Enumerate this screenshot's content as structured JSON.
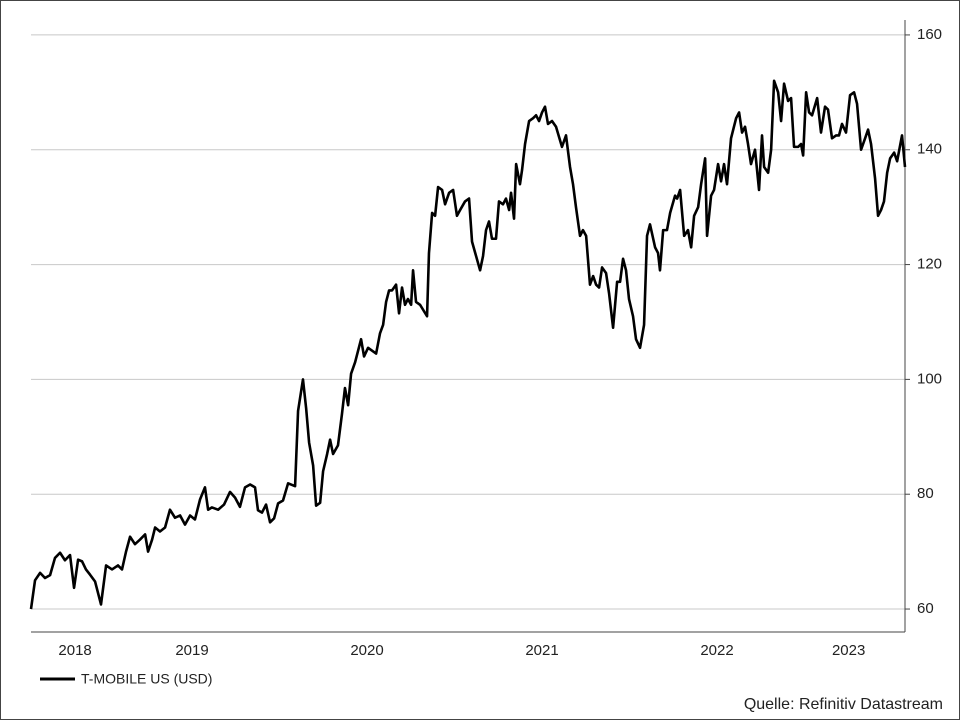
{
  "chart_data": {
    "type": "line",
    "series": [
      {
        "name": "T-MOBILE US (USD)",
        "color": "#000000",
        "x": [
          2018.577,
          2018.6,
          2018.629,
          2018.657,
          2018.686,
          2018.714,
          2018.743,
          2018.771,
          2018.8,
          2018.823,
          2018.846,
          2018.869,
          2018.891,
          2018.914,
          2018.943,
          2018.977,
          2019.006,
          2019.04,
          2019.074,
          2019.097,
          2019.12,
          2019.143,
          2019.171,
          2019.2,
          2019.229,
          2019.246,
          2019.269,
          2019.286,
          2019.314,
          2019.343,
          2019.371,
          2019.4,
          2019.429,
          2019.457,
          2019.486,
          2019.514,
          2019.543,
          2019.571,
          2019.589,
          2019.611,
          2019.646,
          2019.68,
          2019.714,
          2019.743,
          2019.771,
          2019.8,
          2019.829,
          2019.857,
          2019.874,
          2019.897,
          2019.92,
          2019.943,
          2019.966,
          2019.989,
          2020.017,
          2020.046,
          2020.086,
          2020.103,
          2020.131,
          2020.149,
          2020.166,
          2020.189,
          2020.206,
          2020.229,
          2020.246,
          2020.269,
          2020.286,
          2020.303,
          2020.331,
          2020.354,
          2020.371,
          2020.389,
          2020.406,
          2020.429,
          2020.463,
          2020.48,
          2020.503,
          2020.549,
          2020.571,
          2020.589,
          2020.606,
          2020.623,
          2020.64,
          2020.663,
          2020.68,
          2020.697,
          2020.714,
          2020.731,
          2020.749,
          2020.76,
          2020.777,
          2020.8,
          2020.84,
          2020.851,
          2020.869,
          2020.886,
          2020.903,
          2020.926,
          2020.943,
          2020.966,
          2020.989,
          2021.011,
          2021.029,
          2021.057,
          2021.08,
          2021.097,
          2021.12,
          2021.143,
          2021.16,
          2021.177,
          2021.194,
          2021.211,
          2021.234,
          2021.251,
          2021.274,
          2021.291,
          2021.309,
          2021.32,
          2021.337,
          2021.349,
          2021.371,
          2021.383,
          2021.4,
          2021.423,
          2021.446,
          2021.463,
          2021.48,
          2021.497,
          2021.514,
          2021.531,
          2021.554,
          2021.577,
          2021.611,
          2021.634,
          2021.657,
          2021.674,
          2021.691,
          2021.714,
          2021.731,
          2021.749,
          2021.771,
          2021.789,
          2021.806,
          2021.823,
          2021.84,
          2021.863,
          2021.88,
          2021.903,
          2021.926,
          2021.943,
          2021.96,
          2021.977,
          2021.994,
          2022.017,
          2022.034,
          2022.057,
          2022.08,
          2022.097,
          2022.114,
          2022.143,
          2022.16,
          2022.171,
          2022.189,
          2022.211,
          2022.229,
          2022.257,
          2022.269,
          2022.286,
          2022.309,
          2022.331,
          2022.349,
          2022.366,
          2022.389,
          2022.406,
          2022.429,
          2022.44,
          2022.463,
          2022.48,
          2022.503,
          2022.52,
          2022.537,
          2022.554,
          2022.577,
          2022.606,
          2022.623,
          2022.64,
          2022.657,
          2022.674,
          2022.691,
          2022.714,
          2022.737,
          2022.754,
          2022.766,
          2022.789,
          2022.806,
          2022.823,
          2022.846,
          2022.863,
          2022.88,
          2022.903,
          2022.92,
          2022.937,
          2022.96,
          2022.977,
          2022.989,
          2023.006,
          2023.023,
          2023.04,
          2023.069,
          2023.091,
          2023.114,
          2023.131,
          2023.154,
          2023.177,
          2023.194,
          2023.211,
          2023.234,
          2023.257,
          2023.28,
          2023.297,
          2023.32,
          2023.343,
          2023.36,
          2023.377,
          2023.4,
          2023.417,
          2023.434,
          2023.451,
          2023.469,
          2023.486,
          2023.509,
          2023.526,
          2023.554,
          2023.571
        ],
        "values": [
          60,
          65,
          66.3,
          65.4,
          65.9,
          68.9,
          69.8,
          68.5,
          69.4,
          63.7,
          68.6,
          68.3,
          66.9,
          66,
          64.8,
          60.8,
          67.6,
          66.9,
          67.6,
          66.9,
          70,
          72.6,
          71.3,
          72.1,
          73,
          70,
          72.1,
          74.2,
          73.5,
          74.2,
          77.3,
          75.9,
          76.3,
          74.7,
          76.3,
          75.6,
          79.1,
          81.2,
          77.3,
          77.7,
          77.3,
          78.2,
          80.4,
          79.4,
          77.8,
          81.2,
          81.7,
          81.2,
          77.2,
          76.8,
          78.2,
          75.1,
          75.8,
          78.4,
          78.9,
          81.9,
          81.4,
          94.5,
          100,
          95,
          89,
          85,
          78,
          78.5,
          84,
          87,
          89.5,
          87,
          88.5,
          94,
          98.5,
          95.5,
          101,
          103,
          107,
          104,
          105.5,
          104.5,
          108,
          109.5,
          113.5,
          115.5,
          115.5,
          116.5,
          111.5,
          116,
          113,
          114,
          113,
          119,
          113.5,
          113,
          111,
          122,
          129,
          128.5,
          133.5,
          133,
          130.5,
          132.5,
          133,
          128.5,
          129.5,
          131,
          131.5,
          124,
          121.5,
          119,
          121.5,
          126,
          127.5,
          124.5,
          124.5,
          131,
          130.5,
          131.5,
          129.5,
          132.5,
          128,
          137.5,
          134,
          136.5,
          141,
          145,
          145.5,
          146,
          145,
          146.5,
          147.5,
          144.5,
          145,
          144,
          140.5,
          142.5,
          137,
          134,
          130,
          125,
          126,
          125,
          116.5,
          118,
          116.5,
          116,
          119.5,
          118.5,
          115,
          109,
          117,
          117,
          121,
          119,
          114,
          111,
          107,
          105.5,
          109.5,
          125,
          127,
          123,
          122,
          119,
          126,
          126,
          129,
          132,
          131.5,
          133,
          125,
          126,
          123,
          128.5,
          130,
          134,
          138.5,
          125,
          132,
          133,
          137.5,
          134.5,
          137.5,
          134,
          142,
          145.5,
          146.5,
          143,
          144,
          141,
          137.5,
          140,
          133,
          142.5,
          137,
          136,
          140,
          152,
          150,
          145,
          151.5,
          148.5,
          149,
          140.5,
          140.5,
          141,
          139,
          150,
          146.5,
          146,
          149,
          143,
          147.5,
          147,
          142,
          142.5,
          142.5,
          144.5,
          143,
          149.5,
          150,
          148,
          140,
          142,
          143.5,
          141,
          135,
          128.5,
          129.5,
          131,
          136,
          138.5,
          139.5,
          138,
          142.5,
          137
        ]
      }
    ],
    "xlim": [
      2018.577,
      2023.571
    ],
    "xticks": [
      {
        "value": 2018.829,
        "label": "2018"
      },
      {
        "value": 2019.497,
        "label": "2019"
      },
      {
        "value": 2020.497,
        "label": "2020"
      },
      {
        "value": 2021.497,
        "label": "2021"
      },
      {
        "value": 2022.497,
        "label": "2022"
      },
      {
        "value": 2023.249,
        "label": "2023"
      }
    ],
    "ylim": [
      56,
      162.6
    ],
    "yticks": [
      60,
      80,
      100,
      120,
      140,
      160
    ],
    "grid": true,
    "source": "Quelle: Refinitiv Datastream"
  }
}
